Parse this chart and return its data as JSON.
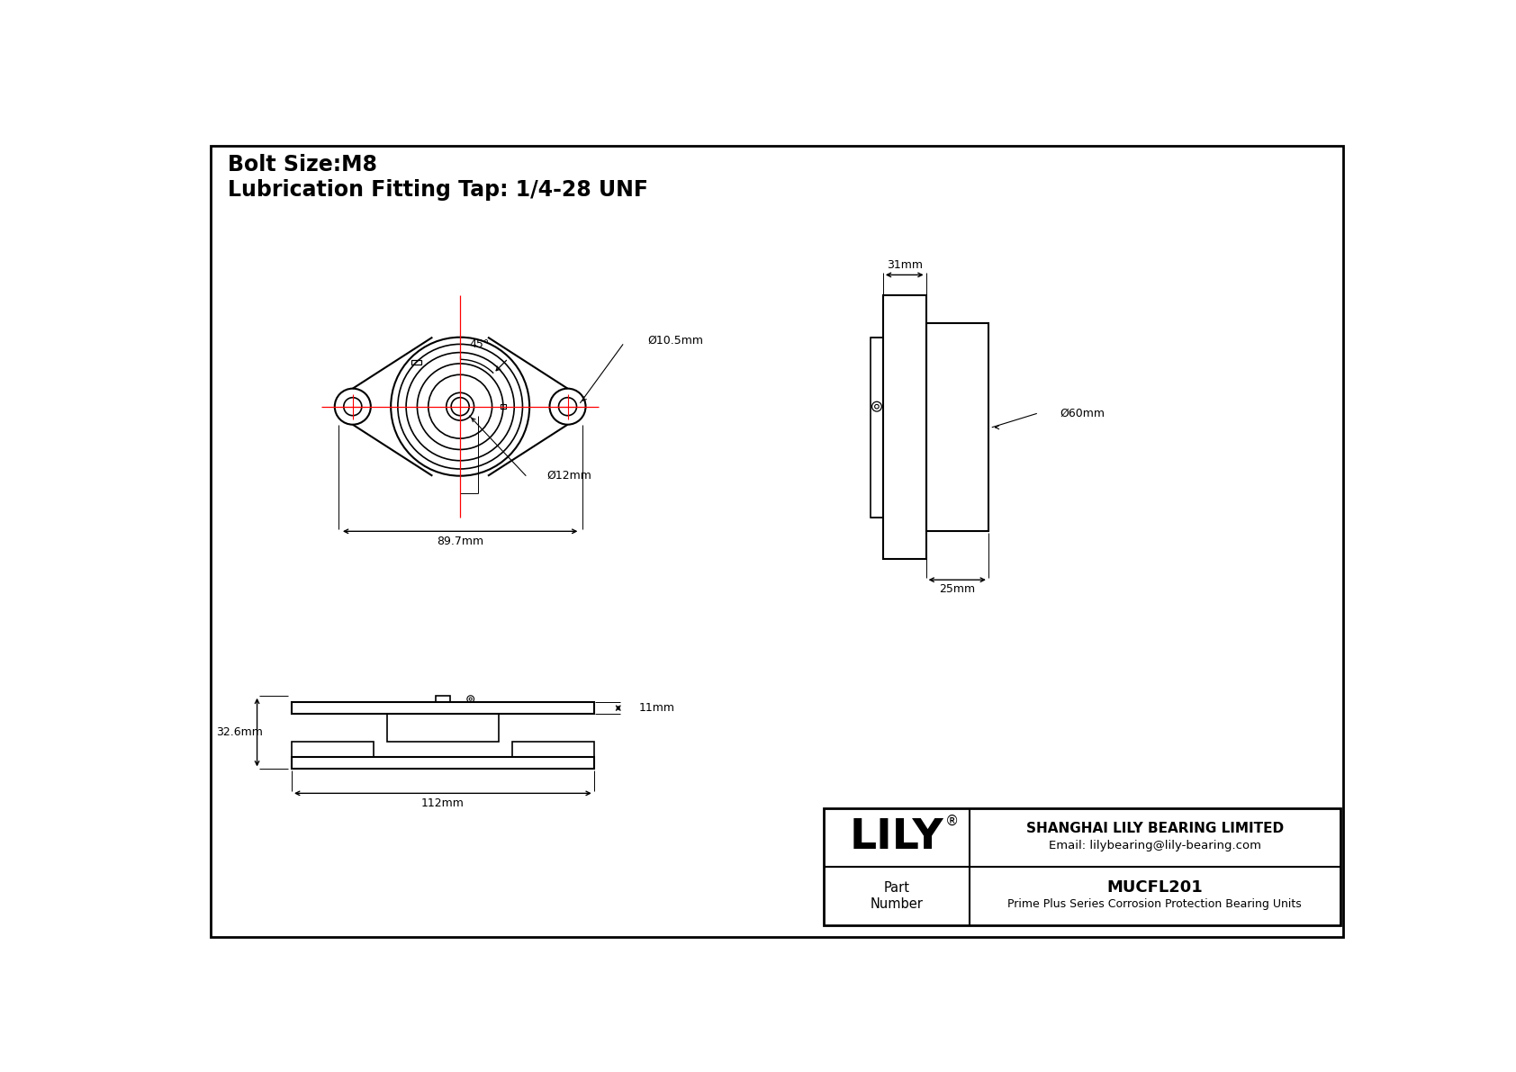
{
  "bg_color": "#ffffff",
  "line_color": "#000000",
  "red_color": "#ff0000",
  "title_line1": "Bolt Size:M8",
  "title_line2": "Lubrication Fitting Tap: 1/4-28 UNF",
  "company": "SHANGHAI LILY BEARING LIMITED",
  "email": "Email: lilybearing@lily-bearing.com",
  "part_number": "MUCFL201",
  "part_desc": "Prime Plus Series Corrosion Protection Bearing Units",
  "brand": "LILY",
  "dims": {
    "bolt_hole_dia": "Ø10.5mm",
    "shaft_dia": "Ø12mm",
    "width": "89.7mm",
    "side_width": "31mm",
    "side_depth": "25mm",
    "outer_dia": "Ø60mm",
    "height": "32.6mm",
    "total_width": "112mm",
    "flange_thickness": "11mm",
    "angle": "45°"
  }
}
